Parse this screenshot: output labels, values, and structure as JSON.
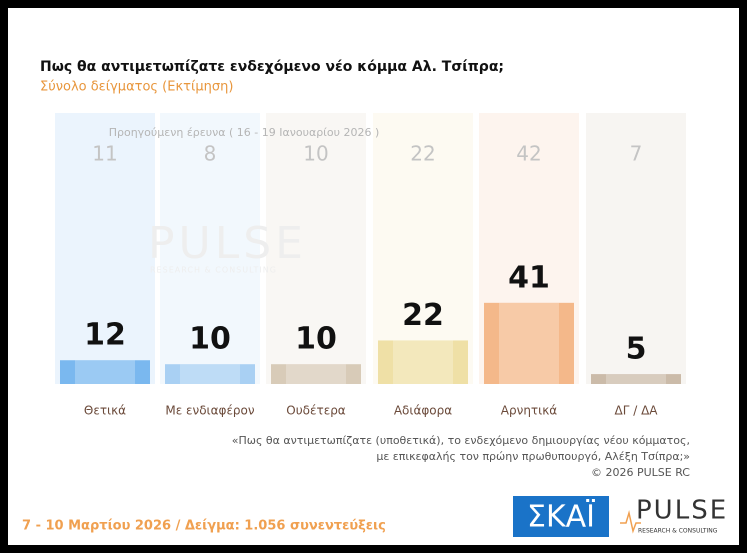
{
  "chart_data": {
    "type": "bar",
    "title": "Πως θα αντιμετωπίζατε ενδεχόμενο νέο κόμμα Αλ. Τσίπρα;",
    "subtitle": "Σύνολο δείγματος  (Εκτίμηση)",
    "categories": [
      "Θετικά",
      "Με ενδιαφέρον",
      "Ουδέτερα",
      "Αδιάφορα",
      "Αρνητικά",
      "ΔΓ / ΔΑ"
    ],
    "values": [
      12,
      10,
      10,
      22,
      41,
      5
    ],
    "colors": [
      "#7ab8ef",
      "#a9d0f3",
      "#d8cbb8",
      "#efe0a6",
      "#f4b88a",
      "#cbbba9"
    ],
    "previous": {
      "label": "Προηγούμενη έρευνα ( 16 - 19 Ιανουαρίου 2026 )",
      "values": [
        11,
        8,
        10,
        22,
        42,
        7
      ]
    },
    "footnote": [
      "«Πως θα αντιμετωπίζατε (υποθετικά), το ενδεχόμενο δημιουργίας νέου κόμματος,",
      "με επικεφαλής τον πρώην πρωθυπουργό, Αλέξη Τσίπρα;»",
      "©  2026  PULSE RC"
    ],
    "footer": "7 - 10  Μαρτίου 2026  /  Δείγμα:  1.056 συνεντεύξεις",
    "logos": {
      "skai": "ΣΚΑΪ",
      "pulse": "PULSE",
      "pulse_sub": "RESEARCH & CONSULTING"
    }
  }
}
